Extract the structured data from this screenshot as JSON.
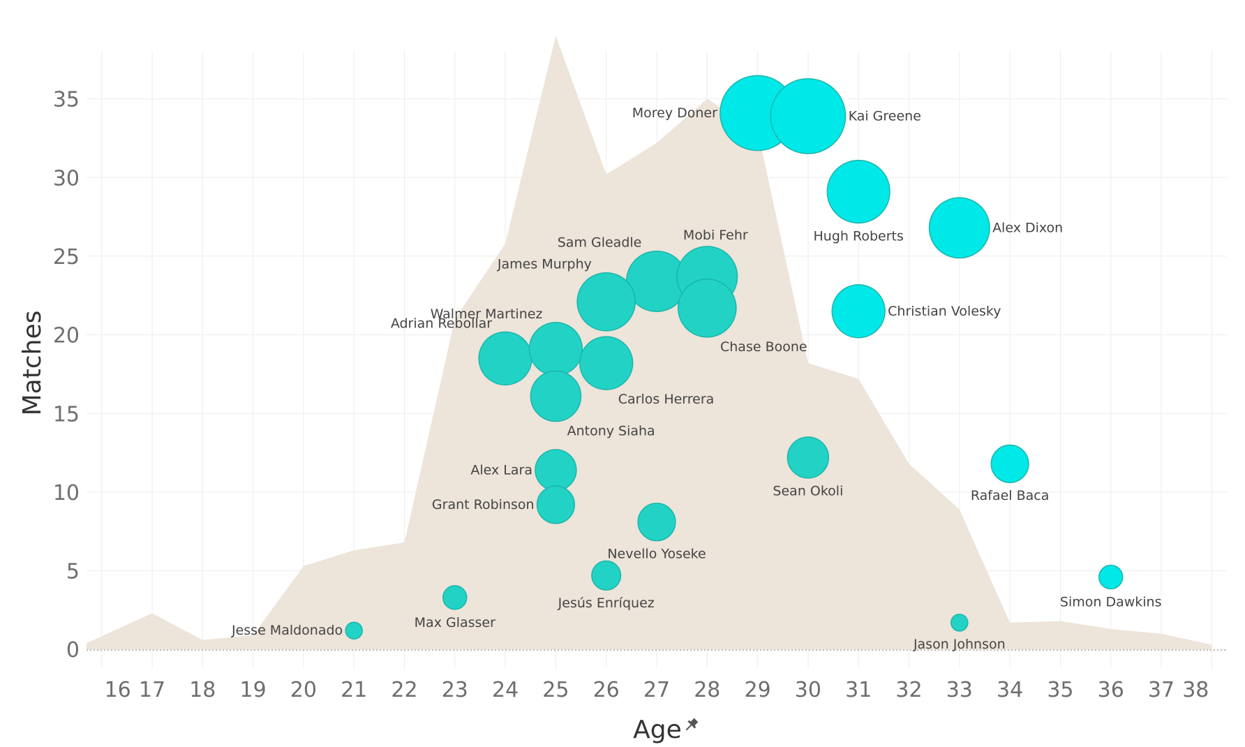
{
  "chart_data": {
    "type": "scatter",
    "xlabel": "Age",
    "ylabel": "Matches",
    "x_ticks": [
      16,
      17,
      18,
      19,
      20,
      21,
      22,
      23,
      24,
      25,
      26,
      27,
      28,
      29,
      30,
      31,
      32,
      33,
      34,
      35,
      36,
      37,
      38
    ],
    "y_ticks": [
      0,
      5,
      10,
      15,
      20,
      25,
      30,
      35
    ],
    "xlim": [
      15.7,
      38.3
    ],
    "ylim": [
      -0.3,
      38
    ],
    "grid": true,
    "axis_pin_icon": "pin-icon",
    "area_color": "#ede4da",
    "bubble_colors": {
      "teal": "#22d3c5",
      "cyan": "#00e8e8",
      "outline": "#1ab5aa"
    },
    "area_series": {
      "x": [
        15.7,
        17,
        18,
        19,
        20,
        21,
        22,
        23,
        24,
        25,
        26,
        27,
        28,
        29,
        30,
        31,
        32,
        33,
        34,
        35,
        36,
        37,
        38
      ],
      "y": [
        0.4,
        2.3,
        0.6,
        0.9,
        5.3,
        6.3,
        6.8,
        21,
        25.8,
        39,
        30.2,
        32.2,
        35,
        33,
        18.2,
        17.2,
        11.8,
        8.9,
        1.7,
        1.8,
        1.3,
        1.0,
        0.3
      ]
    },
    "points": [
      {
        "name": "Jesse Maldonado",
        "x": 21,
        "y": 1.2,
        "size": 1,
        "color": "teal",
        "label_pos": "left"
      },
      {
        "name": "Max Glasser",
        "x": 23,
        "y": 3.3,
        "size": 2,
        "color": "teal",
        "label_pos": "below"
      },
      {
        "name": "Jesús Enríquez",
        "x": 26,
        "y": 4.7,
        "size": 3,
        "color": "teal",
        "label_pos": "below"
      },
      {
        "name": "Nevello Yoseke",
        "x": 27,
        "y": 8.1,
        "size": 5,
        "color": "teal",
        "label_pos": "below"
      },
      {
        "name": "Grant Robinson",
        "x": 25,
        "y": 9.2,
        "size": 5,
        "color": "teal",
        "label_pos": "left"
      },
      {
        "name": "Alex Lara",
        "x": 25,
        "y": 11.4,
        "size": 6,
        "color": "teal",
        "label_pos": "left"
      },
      {
        "name": "Antony Siaha",
        "x": 25,
        "y": 16.1,
        "size": 9,
        "color": "teal",
        "label_pos": "below-right"
      },
      {
        "name": "Adrian Rebollar",
        "x": 24,
        "y": 18.5,
        "size": 10,
        "color": "teal",
        "label_pos": "top-left"
      },
      {
        "name": "Walmer Martinez",
        "x": 25,
        "y": 19.1,
        "size": 10,
        "color": "teal",
        "label_pos": "top-left"
      },
      {
        "name": "Carlos Herrera",
        "x": 26,
        "y": 18.2,
        "size": 10,
        "color": "teal",
        "label_pos": "below-right"
      },
      {
        "name": "James Murphy",
        "x": 26,
        "y": 22.1,
        "size": 12,
        "color": "teal",
        "label_pos": "top-left"
      },
      {
        "name": "Sam Gleadle",
        "x": 27,
        "y": 23.4,
        "size": 13,
        "color": "teal",
        "label_pos": "top-left"
      },
      {
        "name": "Mobi Fehr",
        "x": 28,
        "y": 23.7,
        "size": 13,
        "color": "teal",
        "label_pos": "above"
      },
      {
        "name": "Chase Boone",
        "x": 28,
        "y": 21.7,
        "size": 12,
        "color": "teal",
        "label_pos": "below-right"
      },
      {
        "name": "Sean Okoli",
        "x": 30,
        "y": 12.2,
        "size": 6,
        "color": "teal",
        "label_pos": "below"
      },
      {
        "name": "Jason Johnson",
        "x": 33,
        "y": 1.7,
        "size": 1,
        "color": "teal",
        "label_pos": "below"
      },
      {
        "name": "Morey Doner",
        "x": 29,
        "y": 34.1,
        "size": 20,
        "color": "cyan",
        "label_pos": "left"
      },
      {
        "name": "Kai Greene",
        "x": 30,
        "y": 33.9,
        "size": 20,
        "color": "cyan",
        "label_pos": "right"
      },
      {
        "name": "Hugh Roberts",
        "x": 31,
        "y": 29.1,
        "size": 14,
        "color": "cyan",
        "label_pos": "below"
      },
      {
        "name": "Alex Dixon",
        "x": 33,
        "y": 26.8,
        "size": 13,
        "color": "cyan",
        "label_pos": "right"
      },
      {
        "name": "Christian Volesky",
        "x": 31,
        "y": 21.5,
        "size": 10,
        "color": "cyan",
        "label_pos": "right"
      },
      {
        "name": "Rafael Baca",
        "x": 34,
        "y": 11.8,
        "size": 5,
        "color": "cyan",
        "label_pos": "below"
      },
      {
        "name": "Simon Dawkins",
        "x": 36,
        "y": 4.6,
        "size": 2,
        "color": "cyan",
        "label_pos": "below"
      }
    ]
  }
}
